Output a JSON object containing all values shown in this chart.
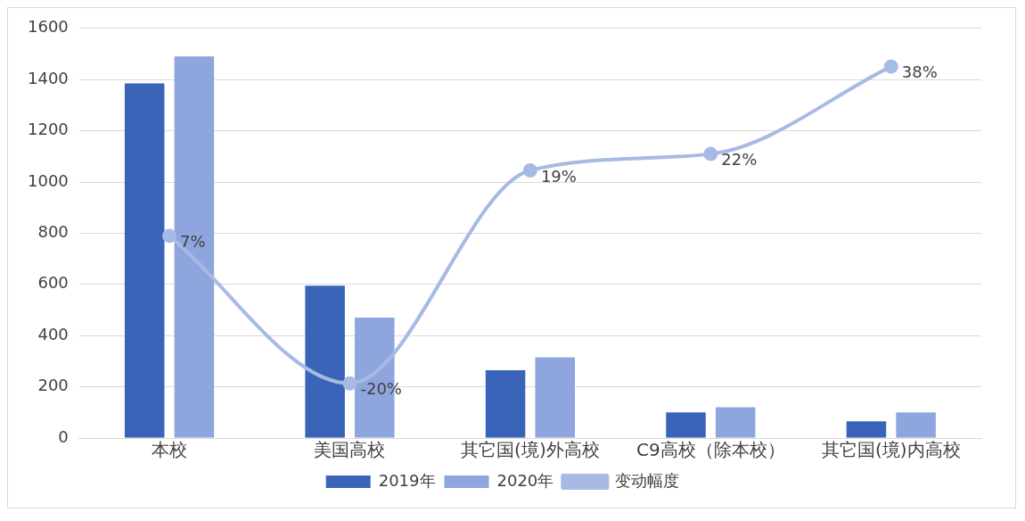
{
  "chart_data": {
    "type": "bar",
    "categories": [
      "本校",
      "美国高校",
      "其它国(境)外高校",
      "C9高校（除本校）",
      "其它国(境)内高校"
    ],
    "series": [
      {
        "name": "2019年",
        "color": "#3a64b8",
        "values": [
          1385,
          595,
          265,
          100,
          65
        ]
      },
      {
        "name": "2020年",
        "color": "#8ea6dd",
        "values": [
          1490,
          470,
          315,
          120,
          100
        ]
      },
      {
        "name": "变动幅度",
        "type": "line",
        "axis": "y2",
        "color": "#a7bae6",
        "values": [
          7,
          -20,
          19,
          22,
          38
        ],
        "value_labels": [
          "7%",
          "-20%",
          "19%",
          "22%",
          "38%"
        ]
      }
    ],
    "ylim": [
      0,
      1600
    ],
    "yticks": [
      0,
      200,
      400,
      600,
      800,
      1000,
      1200,
      1400,
      1600
    ],
    "y2lim": [
      -30,
      45
    ],
    "grid": "y",
    "legend": "bottom",
    "marker": "circle",
    "line_style": "solid"
  }
}
